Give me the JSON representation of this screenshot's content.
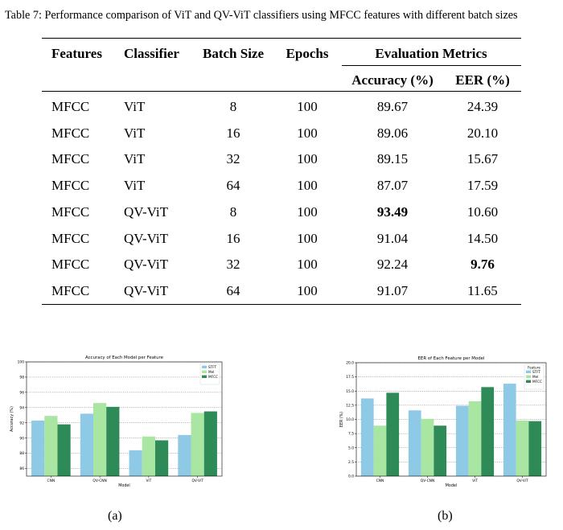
{
  "caption": {
    "prefix": "Table 7:",
    "text": "Performance comparison of ViT and QV-ViT classifiers using MFCC features with different batch sizes"
  },
  "table": {
    "headers": {
      "features": "Features",
      "classifier": "Classifier",
      "batch_size": "Batch Size",
      "epochs": "Epochs",
      "evaluation_metrics": "Evaluation Metrics",
      "accuracy": "Accuracy (%)",
      "eer": "EER (%)"
    },
    "rows": [
      {
        "features": "MFCC",
        "classifier": "ViT",
        "batch": "8",
        "epochs": "100",
        "accuracy": "89.67",
        "eer": "24.39",
        "acc_bold": false,
        "eer_bold": false
      },
      {
        "features": "MFCC",
        "classifier": "ViT",
        "batch": "16",
        "epochs": "100",
        "accuracy": "89.06",
        "eer": "20.10",
        "acc_bold": false,
        "eer_bold": false
      },
      {
        "features": "MFCC",
        "classifier": "ViT",
        "batch": "32",
        "epochs": "100",
        "accuracy": "89.15",
        "eer": "15.67",
        "acc_bold": false,
        "eer_bold": false
      },
      {
        "features": "MFCC",
        "classifier": "ViT",
        "batch": "64",
        "epochs": "100",
        "accuracy": "87.07",
        "eer": "17.59",
        "acc_bold": false,
        "eer_bold": false
      },
      {
        "features": "MFCC",
        "classifier": "QV-ViT",
        "batch": "8",
        "epochs": "100",
        "accuracy": "93.49",
        "eer": "10.60",
        "acc_bold": true,
        "eer_bold": false
      },
      {
        "features": "MFCC",
        "classifier": "QV-ViT",
        "batch": "16",
        "epochs": "100",
        "accuracy": "91.04",
        "eer": "14.50",
        "acc_bold": false,
        "eer_bold": false
      },
      {
        "features": "MFCC",
        "classifier": "QV-ViT",
        "batch": "32",
        "epochs": "100",
        "accuracy": "92.24",
        "eer": "9.76",
        "acc_bold": false,
        "eer_bold": true
      },
      {
        "features": "MFCC",
        "classifier": "QV-ViT",
        "batch": "64",
        "epochs": "100",
        "accuracy": "91.07",
        "eer": "11.65",
        "acc_bold": false,
        "eer_bold": false
      }
    ]
  },
  "subfigure_labels": {
    "a": "(a)",
    "b": "(b)"
  },
  "chart_data": [
    {
      "type": "bar",
      "title": "Accuracy of Each Model per Feature",
      "xlabel": "Model",
      "ylabel": "Accuracy (%)",
      "categories": [
        "CNN",
        "QV-CNN",
        "ViT",
        "QV-ViT"
      ],
      "ylim": [
        85,
        100
      ],
      "yticks": [
        86,
        88,
        90,
        92,
        94,
        96,
        98,
        100
      ],
      "ytick_labels": [
        "86",
        "88",
        "90",
        "92",
        "94",
        "96",
        "98",
        "100"
      ],
      "grid": true,
      "legend": "top-right",
      "legend_title": "",
      "series": [
        {
          "name": "STFT",
          "color": "#8ecae6",
          "values": [
            92.3,
            93.2,
            88.4,
            90.4
          ]
        },
        {
          "name": "Mel",
          "color": "#a8e6a1",
          "values": [
            92.9,
            94.6,
            90.2,
            93.3
          ]
        },
        {
          "name": "MFCC",
          "color": "#2e8b57",
          "values": [
            91.8,
            94.1,
            89.7,
            93.5
          ]
        }
      ]
    },
    {
      "type": "bar",
      "title": "EER of Each Feature per Model",
      "xlabel": "Model",
      "ylabel": "EER (%)",
      "categories": [
        "CNN",
        "QV-CNN",
        "ViT",
        "QV-ViT"
      ],
      "ylim": [
        0,
        20
      ],
      "yticks": [
        0,
        2.5,
        5,
        7.5,
        10,
        12.5,
        15,
        17.5,
        20
      ],
      "ytick_labels": [
        "0.0",
        "2.5",
        "5.0",
        "7.5",
        "10.0",
        "12.5",
        "15.0",
        "17.5",
        "20.0"
      ],
      "grid": true,
      "legend": "top-right",
      "legend_title": "Feature",
      "series": [
        {
          "name": "STFT",
          "color": "#8ecae6",
          "values": [
            13.7,
            11.6,
            12.4,
            16.3
          ]
        },
        {
          "name": "Mel",
          "color": "#a8e6a1",
          "values": [
            8.9,
            10.1,
            13.2,
            9.8
          ]
        },
        {
          "name": "MFCC",
          "color": "#2e8b57",
          "values": [
            14.7,
            8.9,
            15.7,
            9.7
          ]
        }
      ]
    }
  ]
}
